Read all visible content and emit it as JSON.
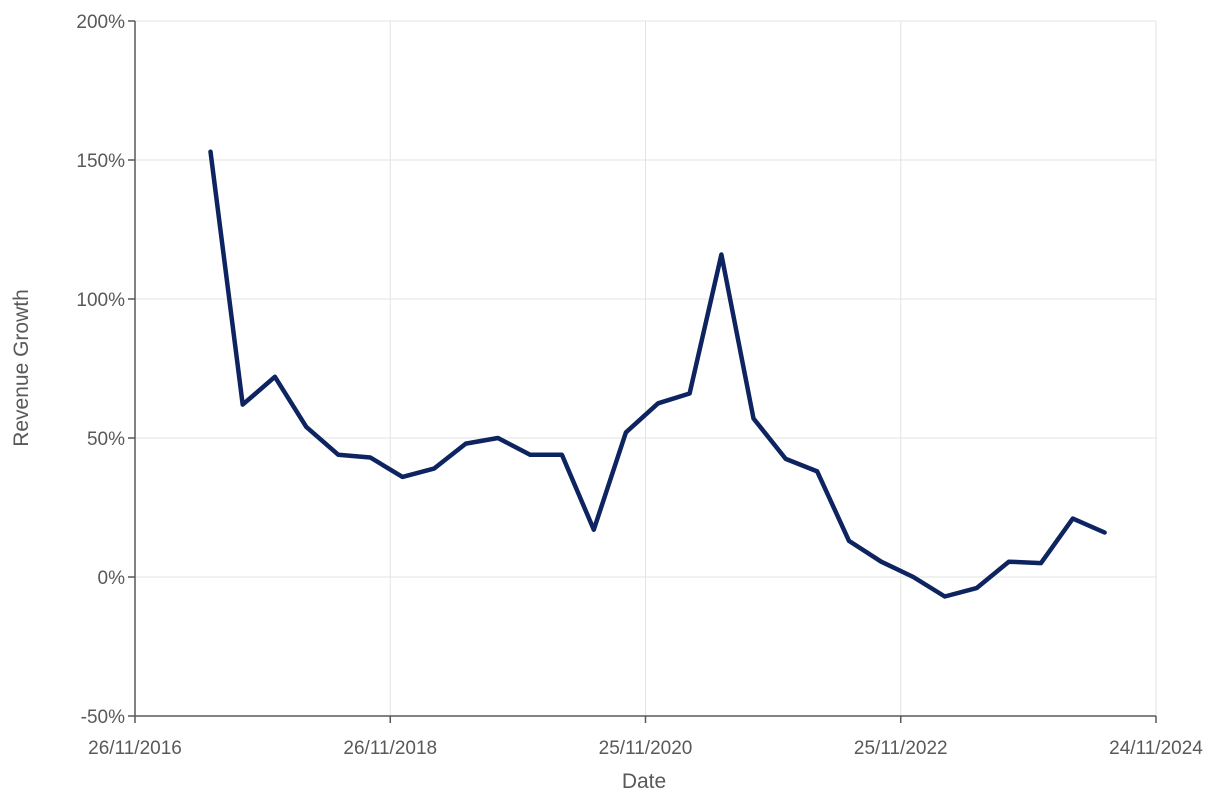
{
  "chart_data": {
    "type": "line",
    "title": "",
    "xlabel": "Date",
    "ylabel": "Revenue Growth",
    "x_tick_labels": [
      "26/11/2016",
      "26/11/2018",
      "25/11/2020",
      "25/11/2022",
      "24/11/2024"
    ],
    "x_ticks": [
      "2016-11-26",
      "2018-11-26",
      "2020-11-25",
      "2022-11-25",
      "2024-11-24"
    ],
    "xlim": [
      "2016-11-26",
      "2024-11-24"
    ],
    "y_tick_labels": [
      "200%",
      "150%",
      "100%",
      "50%",
      "0%",
      "-50%"
    ],
    "y_ticks": [
      200,
      150,
      100,
      50,
      0,
      -50
    ],
    "ylim": [
      -50,
      200
    ],
    "y_unit": "%",
    "grid": true,
    "legend": "none",
    "series": [
      {
        "color": "#0d2461",
        "points": [
          {
            "x": "2017-06-30",
            "y": 153
          },
          {
            "x": "2017-09-30",
            "y": 62
          },
          {
            "x": "2017-12-31",
            "y": 72
          },
          {
            "x": "2018-03-31",
            "y": 54
          },
          {
            "x": "2018-06-30",
            "y": 44
          },
          {
            "x": "2018-09-30",
            "y": 43
          },
          {
            "x": "2018-12-31",
            "y": 36
          },
          {
            "x": "2019-03-31",
            "y": 39
          },
          {
            "x": "2019-06-30",
            "y": 48
          },
          {
            "x": "2019-09-30",
            "y": 50
          },
          {
            "x": "2019-12-31",
            "y": 44
          },
          {
            "x": "2020-03-31",
            "y": 44
          },
          {
            "x": "2020-06-30",
            "y": 17
          },
          {
            "x": "2020-09-30",
            "y": 52
          },
          {
            "x": "2020-12-31",
            "y": 62.5
          },
          {
            "x": "2021-03-31",
            "y": 66
          },
          {
            "x": "2021-06-30",
            "y": 116
          },
          {
            "x": "2021-09-30",
            "y": 57
          },
          {
            "x": "2021-12-31",
            "y": 42.5
          },
          {
            "x": "2022-03-31",
            "y": 38
          },
          {
            "x": "2022-06-30",
            "y": 13
          },
          {
            "x": "2022-09-30",
            "y": 5.5
          },
          {
            "x": "2022-12-31",
            "y": 0
          },
          {
            "x": "2023-03-31",
            "y": -7
          },
          {
            "x": "2023-06-30",
            "y": -4
          },
          {
            "x": "2023-09-30",
            "y": 5.5
          },
          {
            "x": "2023-12-31",
            "y": 5
          },
          {
            "x": "2024-03-31",
            "y": 21
          },
          {
            "x": "2024-06-30",
            "y": 16
          }
        ]
      }
    ]
  }
}
